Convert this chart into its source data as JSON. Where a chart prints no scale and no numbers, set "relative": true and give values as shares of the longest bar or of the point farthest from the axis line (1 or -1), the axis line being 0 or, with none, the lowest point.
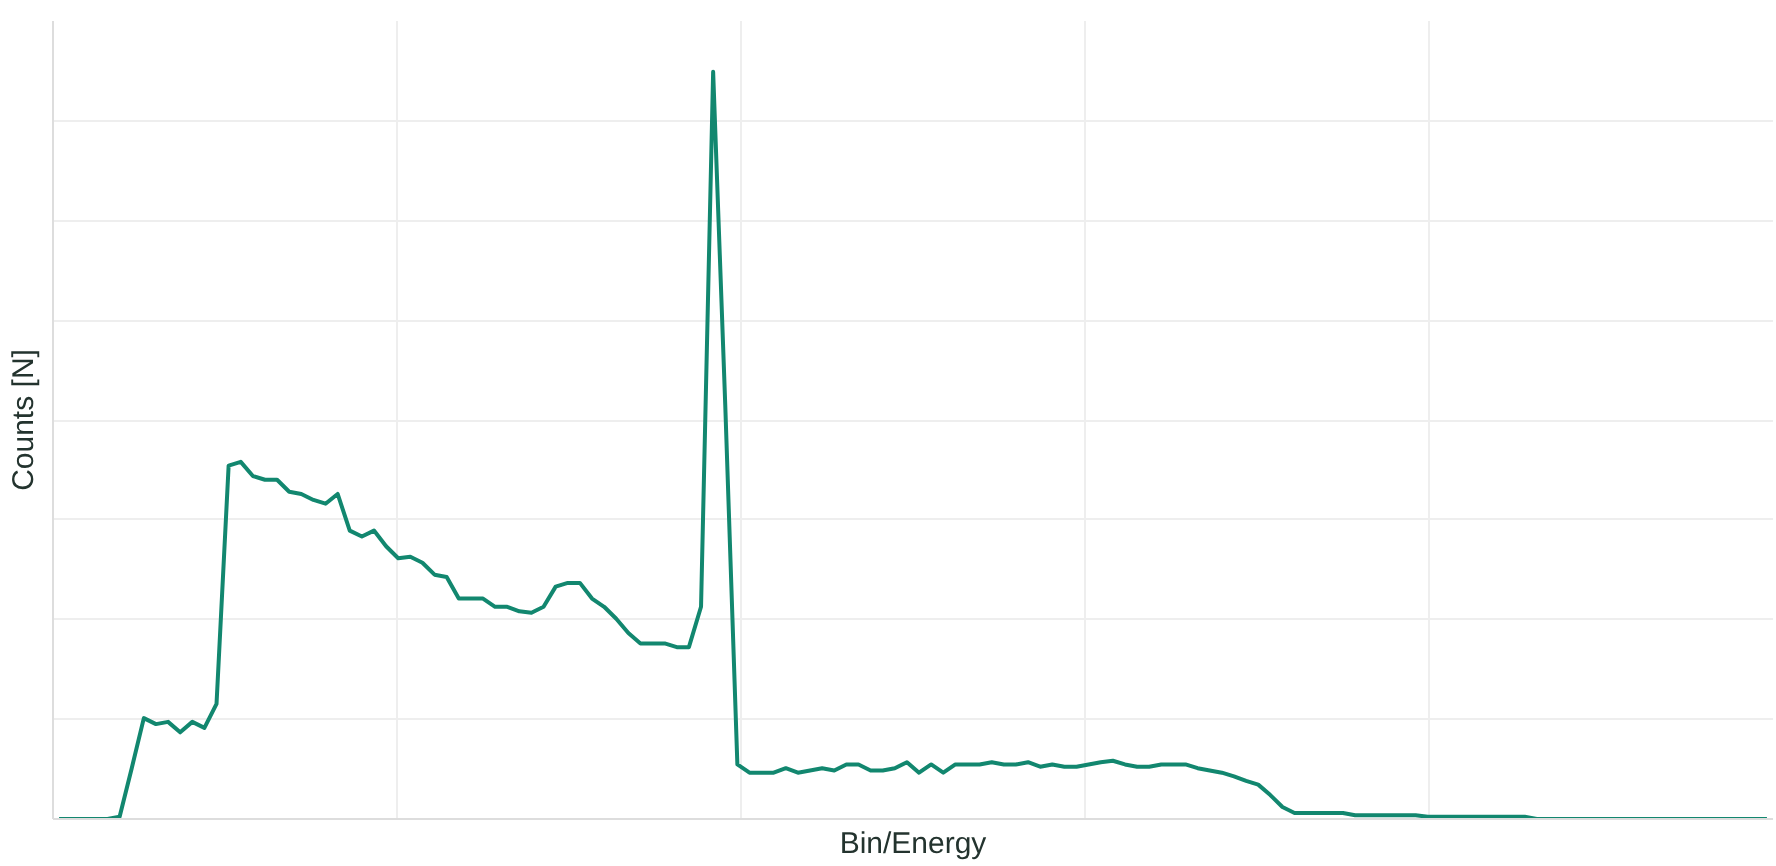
{
  "chart_data": {
    "type": "line",
    "relative": true,
    "xlabel": "Bin/Energy",
    "ylabel": "Counts [N]",
    "grid": true,
    "marker": "none",
    "line_style": "solid",
    "categories": [
      null,
      null,
      null,
      null,
      null,
      null,
      null,
      null,
      null,
      null,
      null,
      null,
      null,
      null,
      null,
      null,
      null,
      null,
      null,
      null,
      null,
      null,
      null,
      null,
      null,
      null,
      null,
      null,
      null,
      null,
      null,
      null,
      null,
      null,
      null,
      null,
      null,
      null,
      null,
      null,
      null,
      null,
      null,
      null,
      null,
      null,
      null,
      null,
      null,
      null,
      null,
      null,
      null,
      null,
      null,
      null,
      null,
      null,
      null,
      null,
      null,
      null,
      null,
      null,
      null,
      null,
      null,
      null,
      null,
      null,
      null,
      null,
      null,
      null,
      null,
      null,
      null,
      null,
      null,
      null,
      null,
      null,
      null,
      null,
      null,
      null,
      null,
      null,
      null,
      null,
      null,
      null,
      null,
      null,
      null,
      null,
      null,
      null,
      null,
      null,
      null,
      null,
      null,
      null,
      null,
      null,
      null,
      null,
      null,
      null,
      null,
      null,
      null,
      null,
      null,
      null,
      null,
      null,
      null,
      null,
      null,
      null,
      null,
      null,
      null,
      null,
      null,
      null,
      null,
      null,
      null,
      null,
      null,
      null,
      null,
      null,
      null,
      null,
      null,
      null,
      null,
      null
    ],
    "series": [
      {
        "color": "#12876f",
        "values": [
          0,
          0,
          0,
          0,
          0,
          0.003,
          0.068,
          0.135,
          0.127,
          0.13,
          0.116,
          0.13,
          0.122,
          0.154,
          0.473,
          0.478,
          0.459,
          0.454,
          0.454,
          0.438,
          0.435,
          0.427,
          0.422,
          0.435,
          0.386,
          0.378,
          0.386,
          0.365,
          0.349,
          0.351,
          0.343,
          0.327,
          0.324,
          0.295,
          0.295,
          0.295,
          0.284,
          0.284,
          0.278,
          0.276,
          0.284,
          0.311,
          0.316,
          0.316,
          0.295,
          0.284,
          0.268,
          0.249,
          0.235,
          0.235,
          0.235,
          0.23,
          0.23,
          0.284,
          1,
          0.554,
          0.073,
          0.062,
          0.062,
          0.062,
          0.068,
          0.062,
          0.065,
          0.068,
          0.065,
          0.073,
          0.073,
          0.065,
          0.065,
          0.068,
          0.076,
          0.062,
          0.073,
          0.062,
          0.073,
          0.073,
          0.073,
          0.076,
          0.073,
          0.073,
          0.076,
          0.07,
          0.073,
          0.07,
          0.07,
          0.073,
          0.076,
          0.078,
          0.073,
          0.07,
          0.07,
          0.073,
          0.073,
          0.073,
          0.068,
          0.065,
          0.062,
          0.057,
          0.051,
          0.046,
          0.032,
          0.016,
          0.008,
          0.008,
          0.008,
          0.008,
          0.008,
          0.005,
          0.005,
          0.005,
          0.005,
          0.005,
          0.005,
          0.003,
          0.003,
          0.003,
          0.003,
          0.003,
          0.003,
          0.003,
          0.003,
          0.003,
          0,
          0,
          0,
          0,
          0,
          0,
          0,
          0,
          0,
          0,
          0,
          0,
          0,
          0,
          0,
          0,
          0,
          0,
          0,
          0
        ]
      }
    ]
  }
}
